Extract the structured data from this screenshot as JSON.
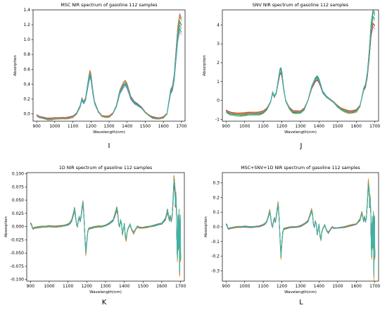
{
  "panels": [
    {
      "letter": "I"
    },
    {
      "letter": "J"
    },
    {
      "letter": "K"
    },
    {
      "letter": "L"
    }
  ],
  "chart_data": [
    {
      "type": "line",
      "title": "MSC NIR spectrum of gasoline 112 samples",
      "xlabel": "Wavelength(nm)",
      "ylabel": "Absorption",
      "xlim": [
        880,
        1720
      ],
      "ylim": [
        -0.1,
        1.4
      ],
      "xticks": [
        900,
        1000,
        1100,
        1200,
        1300,
        1400,
        1500,
        1600,
        1700
      ],
      "yticks": [
        -0.0,
        0.2,
        0.4,
        0.6,
        0.8,
        1.0,
        1.2,
        1.4
      ],
      "ytick_labels": [
        "0.0",
        "0.2",
        "0.4",
        "0.6",
        "0.8",
        "1.0",
        "1.2",
        "1.4"
      ],
      "grid": false,
      "series_note_count": 112,
      "representative_series": [
        {
          "x": [
            900,
            910,
            920,
            940,
            960,
            980,
            1000,
            1020,
            1040,
            1060,
            1080,
            1100,
            1120,
            1140,
            1150,
            1160,
            1170,
            1180,
            1190,
            1195,
            1200,
            1210,
            1220,
            1240,
            1260,
            1280,
            1300,
            1320,
            1340,
            1360,
            1380,
            1390,
            1400,
            1410,
            1420,
            1440,
            1460,
            1480,
            1500,
            1520,
            1540,
            1560,
            1580,
            1600,
            1620,
            1640,
            1650,
            1660,
            1670,
            1680,
            1690,
            1700
          ],
          "y": [
            -0.02,
            -0.04,
            -0.05,
            -0.06,
            -0.07,
            -0.07,
            -0.065,
            -0.06,
            -0.06,
            -0.06,
            -0.055,
            -0.04,
            0.0,
            0.1,
            0.2,
            0.15,
            0.2,
            0.35,
            0.5,
            0.55,
            0.5,
            0.3,
            0.15,
            0.03,
            -0.03,
            -0.04,
            -0.04,
            0.0,
            0.1,
            0.3,
            0.4,
            0.42,
            0.38,
            0.3,
            0.22,
            0.15,
            0.12,
            0.08,
            0.02,
            -0.02,
            -0.05,
            -0.06,
            -0.06,
            -0.05,
            0.0,
            0.3,
            0.35,
            0.5,
            0.8,
            1.1,
            1.25,
            1.2
          ]
        }
      ]
    },
    {
      "type": "line",
      "title": "SNV NIR spectrum of gasoline 112 samples",
      "xlabel": "Wavelength(nm)",
      "ylabel": "Absorption",
      "xlim": [
        880,
        1720
      ],
      "ylim": [
        -1.1,
        4.8
      ],
      "xticks": [
        900,
        1000,
        1100,
        1200,
        1300,
        1400,
        1500,
        1600,
        1700
      ],
      "yticks": [
        -1,
        0,
        1,
        2,
        3,
        4
      ],
      "ytick_labels": [
        "-1",
        "0",
        "1",
        "2",
        "3",
        "4"
      ],
      "grid": false,
      "series_note_count": 112,
      "representative_series": [
        {
          "x": [
            900,
            910,
            920,
            940,
            960,
            980,
            1000,
            1020,
            1040,
            1060,
            1080,
            1100,
            1120,
            1140,
            1150,
            1160,
            1170,
            1180,
            1190,
            1195,
            1200,
            1210,
            1220,
            1240,
            1260,
            1280,
            1300,
            1320,
            1340,
            1360,
            1380,
            1390,
            1400,
            1410,
            1420,
            1440,
            1460,
            1480,
            1500,
            1520,
            1540,
            1560,
            1580,
            1600,
            1620,
            1640,
            1650,
            1660,
            1670,
            1680,
            1690,
            1700
          ],
          "y": [
            -0.55,
            -0.62,
            -0.68,
            -0.72,
            -0.74,
            -0.74,
            -0.72,
            -0.7,
            -0.7,
            -0.7,
            -0.68,
            -0.62,
            -0.45,
            -0.05,
            0.4,
            0.2,
            0.4,
            1.0,
            1.55,
            1.6,
            1.4,
            0.6,
            0.0,
            -0.4,
            -0.6,
            -0.62,
            -0.62,
            -0.45,
            0.0,
            0.7,
            1.1,
            1.2,
            1.05,
            0.75,
            0.45,
            0.2,
            0.05,
            -0.1,
            -0.3,
            -0.45,
            -0.55,
            -0.6,
            -0.6,
            -0.55,
            -0.3,
            0.6,
            0.8,
            1.4,
            2.5,
            3.8,
            4.45,
            4.3
          ]
        }
      ]
    },
    {
      "type": "line",
      "title": "1D NIR spectrum of gasoline 112 samples",
      "xlabel": "Wavelength(nm)",
      "ylabel": "Absorption",
      "xlim": [
        880,
        1720
      ],
      "ylim": [
        -0.103,
        0.102
      ],
      "xticks": [
        900,
        1000,
        1100,
        1200,
        1300,
        1400,
        1500,
        1600,
        1700
      ],
      "yticks": [
        -0.1,
        -0.075,
        -0.05,
        -0.025,
        0.0,
        0.025,
        0.05,
        0.075,
        0.1
      ],
      "ytick_labels": [
        "-0.100",
        "-0.075",
        "-0.050",
        "-0.025",
        "0.000",
        "0.025",
        "0.050",
        "0.075",
        "0.100"
      ],
      "grid": false,
      "series_note_count": 112,
      "representative_series": [
        {
          "x": [
            900,
            905,
            910,
            915,
            920,
            940,
            960,
            980,
            1000,
            1020,
            1040,
            1060,
            1080,
            1100,
            1110,
            1120,
            1130,
            1135,
            1140,
            1145,
            1150,
            1155,
            1160,
            1165,
            1170,
            1175,
            1180,
            1185,
            1190,
            1195,
            1200,
            1205,
            1210,
            1220,
            1230,
            1240,
            1260,
            1280,
            1300,
            1320,
            1340,
            1350,
            1360,
            1365,
            1370,
            1375,
            1380,
            1385,
            1390,
            1395,
            1400,
            1405,
            1410,
            1415,
            1420,
            1430,
            1440,
            1450,
            1460,
            1470,
            1480,
            1500,
            1520,
            1540,
            1560,
            1580,
            1600,
            1610,
            1620,
            1630,
            1640,
            1645,
            1650,
            1655,
            1660,
            1665,
            1670,
            1672,
            1675,
            1678,
            1680,
            1683,
            1686,
            1689,
            1692,
            1695,
            1698,
            1700
          ],
          "y": [
            0.006,
            0.004,
            -0.002,
            -0.004,
            -0.002,
            -0.001,
            0.0,
            0.0,
            0.001,
            0.0,
            0.0,
            0.001,
            0.002,
            0.004,
            0.007,
            0.012,
            0.025,
            0.033,
            0.02,
            0.005,
            0.0,
            0.012,
            0.018,
            0.01,
            0.02,
            0.035,
            0.045,
            0.02,
            -0.02,
            -0.05,
            -0.03,
            -0.01,
            -0.004,
            -0.003,
            -0.002,
            -0.001,
            0.0,
            0.0,
            0.002,
            0.006,
            0.012,
            0.022,
            0.034,
            0.025,
            0.005,
            0.0,
            0.012,
            0.005,
            -0.015,
            -0.005,
            0.005,
            -0.018,
            -0.025,
            -0.01,
            -0.004,
            0.004,
            -0.006,
            -0.012,
            -0.005,
            0.0,
            -0.002,
            -0.002,
            -0.001,
            0.0,
            0.002,
            0.004,
            0.006,
            0.01,
            0.015,
            0.03,
            0.012,
            0.02,
            0.01,
            0.02,
            0.05,
            0.088,
            0.07,
            0.04,
            0.06,
            0.03,
            -0.02,
            -0.06,
            0.02,
            -0.04,
            0.03,
            -0.085,
            0.02,
            -0.06
          ]
        }
      ]
    },
    {
      "type": "line",
      "title": "MSC+SNV+1D NIR spectrum of gasoline 112 samples",
      "xlabel": "Wavelength(nm)",
      "ylabel": "Absorption",
      "xlim": [
        880,
        1720
      ],
      "ylim": [
        -0.37,
        0.37
      ],
      "xticks": [
        900,
        1000,
        1100,
        1200,
        1300,
        1400,
        1500,
        1600,
        1700
      ],
      "yticks": [
        -0.3,
        -0.2,
        -0.1,
        0.0,
        0.1,
        0.2,
        0.3
      ],
      "ytick_labels": [
        "-0.3",
        "-0.2",
        "-0.1",
        "0.0",
        "0.1",
        "0.2",
        "0.3"
      ],
      "grid": false,
      "series_note_count": 112,
      "representative_series": [
        {
          "x": [
            900,
            905,
            910,
            915,
            920,
            940,
            960,
            980,
            1000,
            1020,
            1040,
            1060,
            1080,
            1100,
            1110,
            1120,
            1130,
            1135,
            1140,
            1145,
            1150,
            1155,
            1160,
            1165,
            1170,
            1175,
            1180,
            1185,
            1190,
            1195,
            1200,
            1205,
            1210,
            1220,
            1230,
            1240,
            1260,
            1280,
            1300,
            1320,
            1340,
            1350,
            1360,
            1365,
            1370,
            1375,
            1380,
            1385,
            1390,
            1395,
            1400,
            1405,
            1410,
            1415,
            1420,
            1430,
            1440,
            1450,
            1460,
            1470,
            1480,
            1500,
            1520,
            1540,
            1560,
            1580,
            1600,
            1610,
            1620,
            1630,
            1640,
            1645,
            1650,
            1655,
            1660,
            1665,
            1670,
            1672,
            1675,
            1678,
            1680,
            1683,
            1686,
            1689,
            1692,
            1695,
            1698,
            1700
          ],
          "y": [
            0.02,
            0.012,
            -0.008,
            -0.014,
            -0.008,
            -0.004,
            0.0,
            0.0,
            0.003,
            0.0,
            0.0,
            0.003,
            0.006,
            0.014,
            0.024,
            0.04,
            0.085,
            0.11,
            0.07,
            0.018,
            0.0,
            0.04,
            0.06,
            0.035,
            0.07,
            0.12,
            0.16,
            0.07,
            -0.07,
            -0.2,
            -0.11,
            -0.035,
            -0.014,
            -0.01,
            -0.007,
            -0.003,
            0.0,
            0.0,
            0.007,
            0.02,
            0.04,
            0.075,
            0.115,
            0.085,
            0.018,
            0.0,
            0.04,
            0.018,
            -0.05,
            -0.018,
            0.018,
            -0.06,
            -0.085,
            -0.035,
            -0.014,
            0.014,
            -0.02,
            -0.04,
            -0.018,
            0.0,
            -0.007,
            -0.007,
            -0.003,
            0.0,
            0.007,
            0.014,
            0.02,
            0.035,
            0.05,
            0.1,
            0.04,
            0.07,
            0.035,
            0.07,
            0.17,
            0.3,
            0.24,
            0.14,
            0.2,
            0.1,
            -0.07,
            -0.2,
            0.07,
            -0.14,
            0.1,
            -0.33,
            0.07,
            -0.2
          ]
        }
      ]
    }
  ],
  "colors": {
    "axis": "#000000",
    "series_palette": [
      "#1f77b4",
      "#ff7f0e",
      "#2ca02c",
      "#d62728",
      "#9467bd",
      "#8c564b",
      "#e377c2",
      "#7f7f7f",
      "#bcbd22",
      "#17becf"
    ]
  }
}
